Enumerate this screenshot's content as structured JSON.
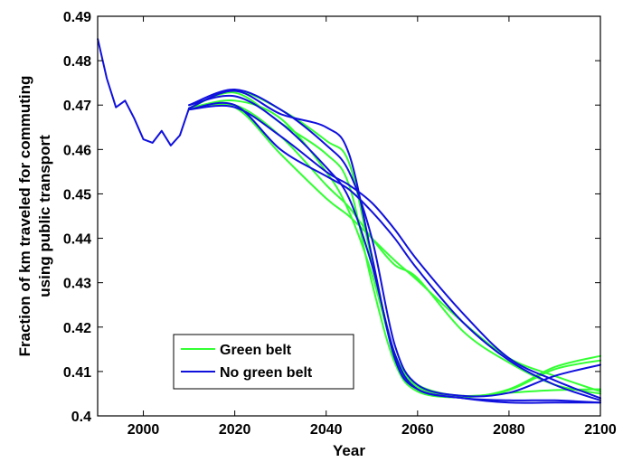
{
  "chart_data": {
    "type": "line",
    "title": "",
    "xlabel": "Year",
    "ylabel_line1": "Fraction of km traveled for commuting",
    "ylabel_line2": "using public transport",
    "xlim": [
      1990,
      2100
    ],
    "ylim": [
      0.4,
      0.49
    ],
    "xticks": [
      2000,
      2020,
      2040,
      2060,
      2080,
      2100
    ],
    "yticks": [
      0.4,
      0.41,
      0.42,
      0.43,
      0.44,
      0.45,
      0.46,
      0.47,
      0.48,
      0.49
    ],
    "grid": false,
    "legend": {
      "placement": "lower-left",
      "entries": [
        {
          "label": "Green belt",
          "color": "#33ff33"
        },
        {
          "label": "No green belt",
          "color": "#1010dd"
        }
      ]
    },
    "history": {
      "color": "#1010dd",
      "x": [
        1990,
        1992,
        1994,
        1996,
        1998,
        2000,
        2002,
        2004,
        2006,
        2008,
        2010
      ],
      "y": [
        0.485,
        0.476,
        0.4695,
        0.471,
        0.467,
        0.4623,
        0.4615,
        0.4642,
        0.4609,
        0.4632,
        0.4693
      ]
    },
    "series": [
      {
        "group": "Green belt",
        "color": "#33ff33",
        "x": [
          2010,
          2020,
          2030,
          2040,
          2045,
          2050,
          2055,
          2060,
          2070,
          2080,
          2090,
          2100
        ],
        "y": [
          0.4693,
          0.4732,
          0.469,
          0.462,
          0.457,
          0.435,
          0.414,
          0.4065,
          0.4045,
          0.4052,
          0.4058,
          0.406
        ]
      },
      {
        "group": "Green belt",
        "color": "#33ff33",
        "x": [
          2010,
          2020,
          2030,
          2040,
          2045,
          2050,
          2055,
          2060,
          2070,
          2080,
          2090,
          2100
        ],
        "y": [
          0.4693,
          0.4728,
          0.466,
          0.459,
          0.452,
          0.43,
          0.412,
          0.4055,
          0.4042,
          0.406,
          0.411,
          0.4135
        ]
      },
      {
        "group": "Green belt",
        "color": "#33ff33",
        "x": [
          2010,
          2020,
          2030,
          2040,
          2045,
          2050,
          2055,
          2060,
          2070,
          2080,
          2090,
          2100
        ],
        "y": [
          0.4693,
          0.47,
          0.463,
          0.452,
          0.447,
          0.44,
          0.434,
          0.431,
          0.419,
          0.412,
          0.407,
          0.405
        ]
      },
      {
        "group": "Green belt",
        "color": "#33ff33",
        "x": [
          2010,
          2020,
          2030,
          2040,
          2045,
          2050,
          2055,
          2060,
          2070,
          2080,
          2090,
          2100
        ],
        "y": [
          0.4693,
          0.4695,
          0.459,
          0.449,
          0.445,
          0.44,
          0.435,
          0.4305,
          0.421,
          0.413,
          0.409,
          0.4055
        ]
      },
      {
        "group": "Green belt",
        "color": "#33ff33",
        "x": [
          2010,
          2020,
          2030,
          2040,
          2045,
          2050,
          2055,
          2060,
          2070,
          2080,
          2090,
          2100
        ],
        "y": [
          0.4693,
          0.471,
          0.467,
          0.455,
          0.446,
          0.432,
          0.414,
          0.407,
          0.4045,
          0.4058,
          0.4105,
          0.4125
        ]
      },
      {
        "group": "No green belt",
        "color": "#1010dd",
        "x": [
          2010,
          2020,
          2030,
          2040,
          2045,
          2050,
          2055,
          2060,
          2070,
          2080,
          2090,
          2100
        ],
        "y": [
          0.4693,
          0.4732,
          0.468,
          0.465,
          0.459,
          0.436,
          0.413,
          0.406,
          0.404,
          0.4035,
          0.4035,
          0.403
        ]
      },
      {
        "group": "No green belt",
        "color": "#1010dd",
        "x": [
          2010,
          2020,
          2030,
          2040,
          2045,
          2050,
          2055,
          2060,
          2070,
          2080,
          2090,
          2100
        ],
        "y": [
          0.47,
          0.4735,
          0.469,
          0.461,
          0.455,
          0.44,
          0.416,
          0.407,
          0.4045,
          0.4052,
          0.409,
          0.4115
        ]
      },
      {
        "group": "No green belt",
        "color": "#1010dd",
        "x": [
          2010,
          2020,
          2030,
          2040,
          2045,
          2050,
          2055,
          2060,
          2070,
          2080,
          2090,
          2100
        ],
        "y": [
          0.469,
          0.4695,
          0.463,
          0.455,
          0.452,
          0.448,
          0.442,
          0.435,
          0.423,
          0.413,
          0.408,
          0.404
        ]
      },
      {
        "group": "No green belt",
        "color": "#1010dd",
        "x": [
          2010,
          2020,
          2030,
          2040,
          2045,
          2050,
          2055,
          2060,
          2070,
          2080,
          2090,
          2100
        ],
        "y": [
          0.469,
          0.47,
          0.46,
          0.454,
          0.451,
          0.446,
          0.44,
          0.433,
          0.421,
          0.4125,
          0.407,
          0.4035
        ]
      },
      {
        "group": "No green belt",
        "color": "#1010dd",
        "x": [
          2010,
          2020,
          2030,
          2040,
          2045,
          2050,
          2055,
          2060,
          2070,
          2080,
          2090,
          2100
        ],
        "y": [
          0.47,
          0.472,
          0.466,
          0.456,
          0.449,
          0.434,
          0.414,
          0.406,
          0.404,
          0.403,
          0.403,
          0.403
        ]
      }
    ]
  }
}
